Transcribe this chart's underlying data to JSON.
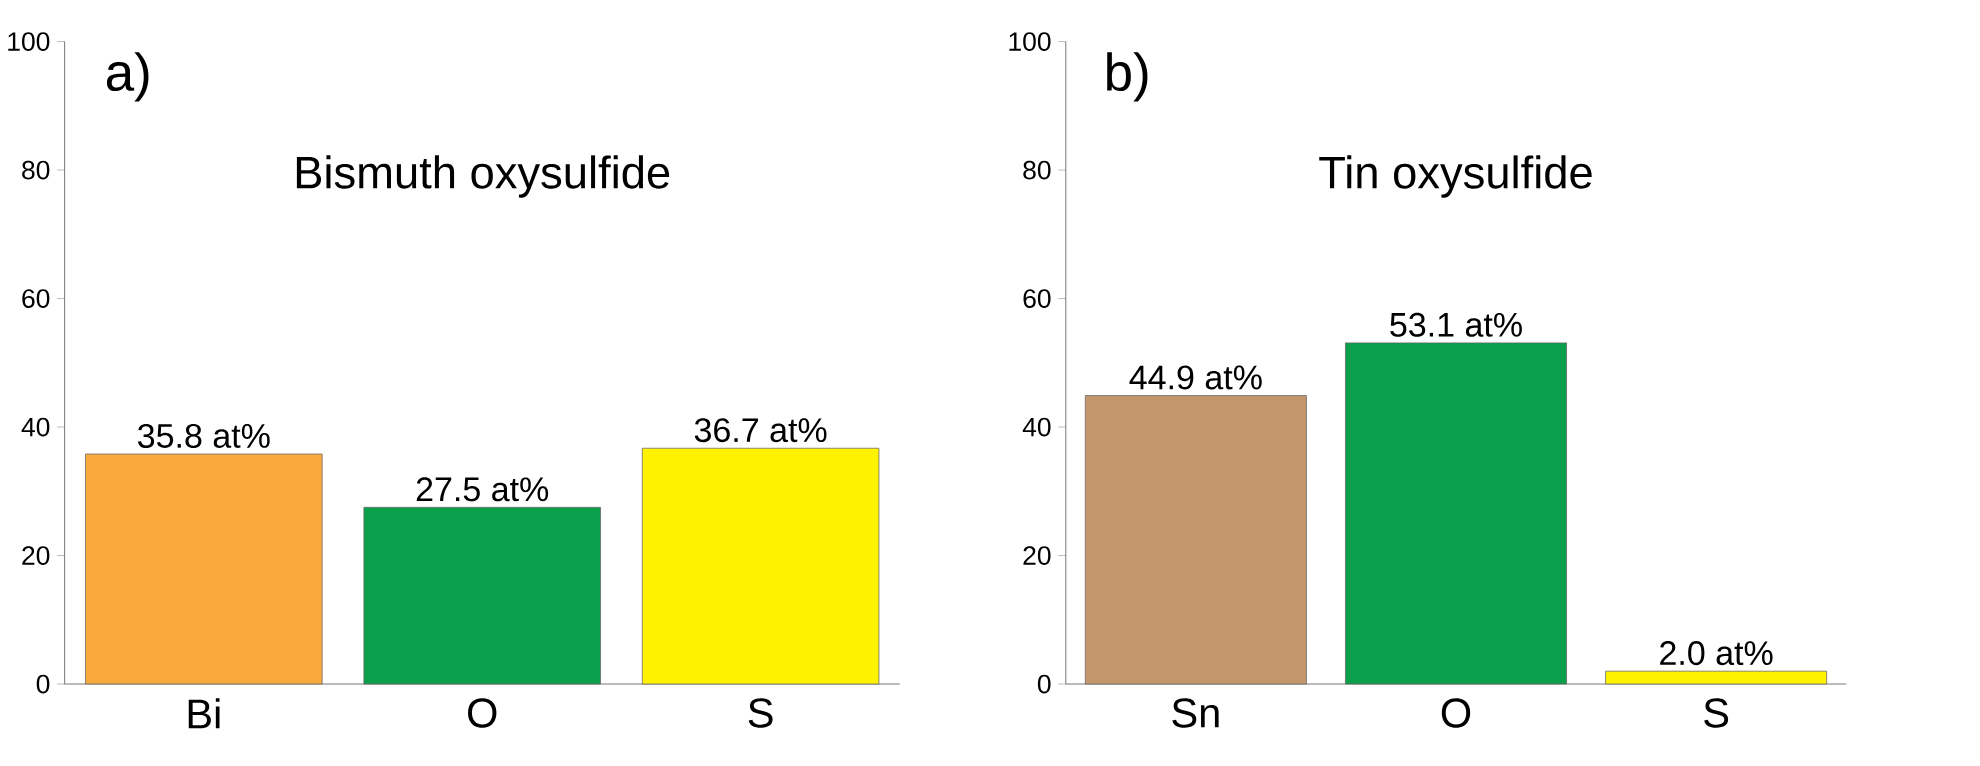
{
  "chart_data": [
    {
      "type": "bar",
      "title": "Bismuth oxysulfide",
      "annotations": [
        "a)"
      ],
      "categories": [
        "Bi",
        "O",
        "S"
      ],
      "values": [
        35.8,
        27.5,
        36.7
      ],
      "colors": [
        "#f9aa3c",
        "#0a9f4a",
        "#fff200"
      ],
      "value_labels": [
        "35.8 at%",
        "27.5 at%",
        "36.7 at%"
      ],
      "ylim": [
        0,
        100
      ],
      "yticks": [
        0,
        20,
        40,
        60,
        80,
        100
      ]
    },
    {
      "type": "bar",
      "title": "Tin oxysulfide",
      "annotations": [
        "b)"
      ],
      "categories": [
        "Sn",
        "O",
        "S"
      ],
      "values": [
        44.9,
        53.1,
        2.0
      ],
      "colors": [
        "#c4976a",
        "#0a9f4a",
        "#fff200"
      ],
      "value_labels": [
        "44.9 at%",
        "53.1 at%",
        "2.0 at%"
      ],
      "ylim": [
        0,
        100
      ],
      "yticks": [
        0,
        20,
        40,
        60,
        80,
        100
      ]
    }
  ]
}
